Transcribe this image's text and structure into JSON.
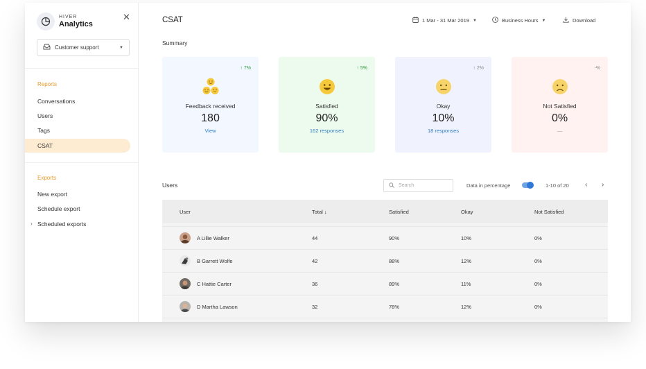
{
  "brand": {
    "small": "HIVER",
    "big": "Analytics"
  },
  "sidebar": {
    "inbox_selector": "Customer support",
    "reports_title": "Reports",
    "reports": [
      {
        "label": "Conversations"
      },
      {
        "label": "Users"
      },
      {
        "label": "Tags"
      },
      {
        "label": "CSAT",
        "active": true
      }
    ],
    "exports_title": "Exports",
    "exports": [
      {
        "label": "New export"
      },
      {
        "label": "Schedule export"
      },
      {
        "label": "Scheduled exports",
        "expandable": true
      }
    ]
  },
  "header": {
    "title": "CSAT",
    "date_range": "1 Mar - 31 Mar 2019",
    "hours": "Business Hours",
    "download": "Download"
  },
  "summary": {
    "title": "Summary",
    "cards": [
      {
        "label": "Feedback received",
        "value": "180",
        "sub": "View",
        "trend": "7%",
        "trend_symbol": "↑",
        "trend_color": "#2e9a3e",
        "bg": "#f3f7ff"
      },
      {
        "label": "Satisfied",
        "value": "90%",
        "sub": "162 responses",
        "trend": "5%",
        "trend_symbol": "↑",
        "trend_color": "#2e9a3e",
        "bg": "#edfbee"
      },
      {
        "label": "Okay",
        "value": "10%",
        "sub": "18 responses",
        "trend": "2%",
        "trend_symbol": "↑",
        "trend_color": "#8c8c8c",
        "bg": "#f0f2fd"
      },
      {
        "label": "Not Satisfied",
        "value": "0%",
        "sub": "—",
        "trend": "%",
        "trend_symbol": "-",
        "trend_color": "#8c8c8c",
        "bg": "#fff2f1"
      }
    ]
  },
  "users": {
    "title": "Users",
    "search_placeholder": "Search",
    "percentage_label": "Data in percentage",
    "percentage_on": true,
    "pagination": "1-10 of 20",
    "columns": [
      "User",
      "Total ↓",
      "Satisfied",
      "Okay",
      "Not Satisfied"
    ],
    "rows": [
      {
        "user": "A Lillie Walker",
        "total": "44",
        "satisfied": "90%",
        "okay": "10%",
        "not_satisfied": "0%"
      },
      {
        "user": "B Garrett Wolfe",
        "total": "42",
        "satisfied": "88%",
        "okay": "12%",
        "not_satisfied": "0%"
      },
      {
        "user": "C Hattie Carter",
        "total": "36",
        "satisfied": "89%",
        "okay": "11%",
        "not_satisfied": "0%"
      },
      {
        "user": "D Martha Lawson",
        "total": "32",
        "satisfied": "78%",
        "okay": "12%",
        "not_satisfied": "0%"
      }
    ]
  },
  "colors": {
    "accent_orange": "#e59a2b",
    "link_blue": "#2d7dc2",
    "active_nav_bg": "#fdecd1",
    "toggle_blue": "#2f78d6"
  },
  "icons": {
    "brand": "pie-chart-icon",
    "close": "close-icon",
    "inbox": "inbox-icon",
    "calendar": "calendar-icon",
    "clock": "clock-icon",
    "download": "download-icon",
    "search": "search-icon"
  }
}
